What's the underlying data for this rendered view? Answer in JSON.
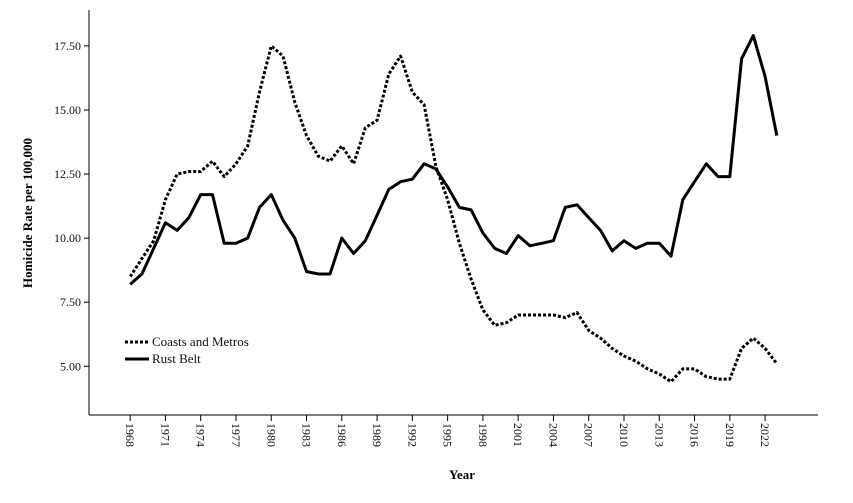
{
  "chart_data": {
    "type": "line",
    "title": "",
    "xlabel": "Year",
    "ylabel": "Homicide Rate per 100,000",
    "xlim": [
      1964.5,
      2026.5
    ],
    "ylim": [
      3.1,
      18.9
    ],
    "x_ticks": [
      1968,
      1971,
      1974,
      1977,
      1980,
      1983,
      1986,
      1989,
      1992,
      1995,
      1998,
      2001,
      2004,
      2007,
      2010,
      2013,
      2016,
      2019,
      2022
    ],
    "y_ticks": [
      5.0,
      7.5,
      10.0,
      12.5,
      15.0,
      17.5
    ],
    "y_tick_labels": [
      "5.00",
      "7.50",
      "10.00",
      "12.50",
      "15.00",
      "17.50"
    ],
    "grid": false,
    "legend_position": "lower-left",
    "x": [
      1968,
      1969,
      1970,
      1971,
      1972,
      1973,
      1974,
      1975,
      1976,
      1977,
      1978,
      1979,
      1980,
      1981,
      1982,
      1983,
      1984,
      1985,
      1986,
      1987,
      1988,
      1989,
      1990,
      1991,
      1992,
      1993,
      1994,
      1995,
      1996,
      1997,
      1998,
      1999,
      2000,
      2001,
      2002,
      2003,
      2004,
      2005,
      2006,
      2007,
      2008,
      2009,
      2010,
      2011,
      2012,
      2013,
      2014,
      2015,
      2016,
      2017,
      2018,
      2019,
      2020,
      2021,
      2022,
      2023
    ],
    "series": [
      {
        "name": "Coasts and Metros",
        "style": "dotted",
        "color": "#000000",
        "values": [
          8.5,
          9.2,
          9.9,
          11.5,
          12.5,
          12.6,
          12.6,
          13.0,
          12.4,
          12.9,
          13.6,
          15.7,
          17.5,
          17.1,
          15.3,
          14.0,
          13.2,
          13.0,
          13.6,
          12.9,
          14.3,
          14.6,
          16.4,
          17.1,
          15.7,
          15.2,
          12.8,
          11.5,
          9.8,
          8.4,
          7.2,
          6.6,
          6.7,
          7.0,
          7.0,
          7.0,
          7.0,
          6.9,
          7.1,
          6.4,
          6.1,
          5.7,
          5.4,
          5.2,
          4.9,
          4.7,
          4.4,
          4.9,
          4.9,
          4.6,
          4.5,
          4.5,
          5.7,
          6.1,
          5.7,
          5.1
        ]
      },
      {
        "name": "Rust Belt",
        "style": "solid",
        "color": "#000000",
        "values": [
          8.2,
          8.6,
          9.6,
          10.6,
          10.3,
          10.8,
          11.7,
          11.7,
          9.8,
          9.8,
          10.0,
          11.2,
          11.7,
          10.7,
          10.0,
          8.7,
          8.6,
          8.6,
          10.0,
          9.4,
          9.9,
          10.9,
          11.9,
          12.2,
          12.3,
          12.9,
          12.7,
          12.0,
          11.2,
          11.1,
          10.2,
          9.6,
          9.4,
          10.1,
          9.7,
          9.8,
          9.9,
          11.2,
          11.3,
          10.8,
          10.3,
          9.5,
          9.9,
          9.6,
          9.8,
          9.8,
          9.3,
          11.5,
          12.2,
          12.9,
          12.4,
          12.4,
          17.0,
          17.9,
          16.3,
          14.0
        ]
      }
    ]
  }
}
